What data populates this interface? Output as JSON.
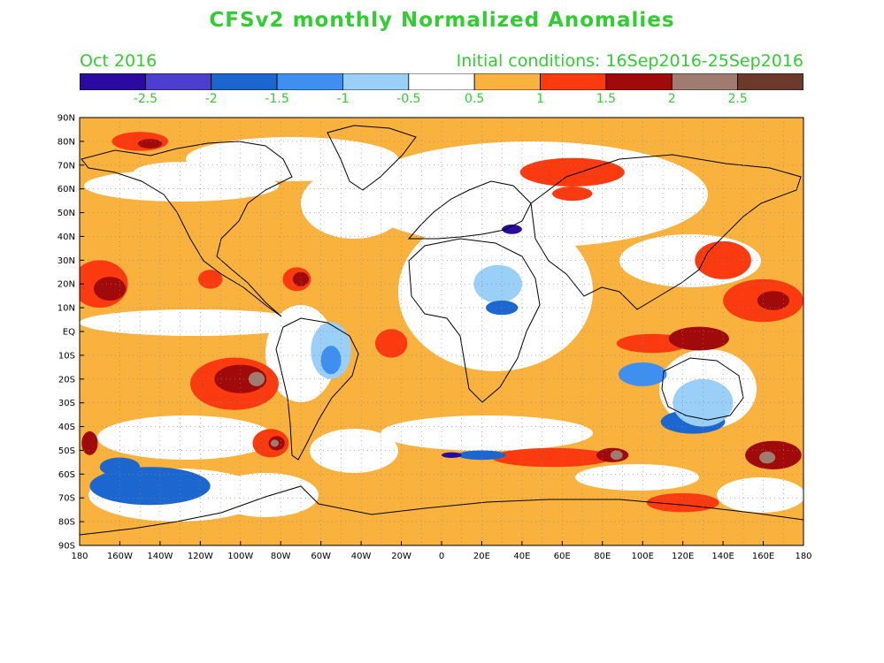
{
  "header": {
    "title": "CFSv2 monthly Normalized Anomalies",
    "valid_month": "Oct 2016",
    "initial_conditions": "Initial conditions: 16Sep2016-25Sep2016"
  },
  "colorbar": {
    "colors": [
      "#2a0aa0",
      "#4c3fd0",
      "#1c66d0",
      "#3f8ff0",
      "#9acff8",
      "#ffffff",
      "#f9b23e",
      "#fb3a10",
      "#a00a0a",
      "#a07c70",
      "#6b3a2a"
    ],
    "labels": [
      "-2.5",
      "-2",
      "-1.5",
      "-1",
      "-0.5",
      "0.5",
      "1",
      "1.5",
      "2",
      "2.5"
    ]
  },
  "axes": {
    "lat_labels": [
      "90N",
      "80N",
      "70N",
      "60N",
      "50N",
      "40N",
      "30N",
      "20N",
      "10N",
      "EQ",
      "10S",
      "20S",
      "30S",
      "40S",
      "50S",
      "60S",
      "70S",
      "80S",
      "90S"
    ],
    "lon_labels": [
      "180",
      "160W",
      "140W",
      "120W",
      "100W",
      "80W",
      "60W",
      "40W",
      "20W",
      "0",
      "20E",
      "40E",
      "60E",
      "80E",
      "100E",
      "120E",
      "140E",
      "160E",
      "180"
    ],
    "lon_range": [
      -180,
      180
    ],
    "lat_range": [
      -90,
      90
    ],
    "grid": "dotted"
  },
  "colors": {
    "text_green": "#33cc33",
    "base_positive": "#f9b23e",
    "neutral": "#ffffff",
    "coast": "#000000"
  },
  "anomaly_regions": [
    {
      "lon": -150,
      "lat": 80,
      "rx": 14,
      "ry": 4,
      "class": "1.5"
    },
    {
      "lon": -145,
      "lat": 79,
      "rx": 6,
      "ry": 2,
      "class": "2"
    },
    {
      "lon": -170,
      "lat": 20,
      "rx": 14,
      "ry": 10,
      "class": "1.5"
    },
    {
      "lon": -165,
      "lat": 18,
      "rx": 8,
      "ry": 5,
      "class": "2"
    },
    {
      "lon": -115,
      "lat": 22,
      "rx": 6,
      "ry": 4,
      "class": "1.5"
    },
    {
      "lon": -72,
      "lat": 22,
      "rx": 7,
      "ry": 5,
      "class": "1.5"
    },
    {
      "lon": -70,
      "lat": 22,
      "rx": 4,
      "ry": 3,
      "class": "2"
    },
    {
      "lon": -103,
      "lat": -22,
      "rx": 22,
      "ry": 11,
      "class": "1.5"
    },
    {
      "lon": -100,
      "lat": -20,
      "rx": 13,
      "ry": 6,
      "class": "2"
    },
    {
      "lon": -92,
      "lat": -20,
      "rx": 4,
      "ry": 3,
      "class": "2.5"
    },
    {
      "lon": -85,
      "lat": -47,
      "rx": 9,
      "ry": 6,
      "class": "1.5"
    },
    {
      "lon": -82,
      "lat": -47,
      "rx": 4,
      "ry": 3,
      "class": "2"
    },
    {
      "lon": -83,
      "lat": -47,
      "rx": 2,
      "ry": 1.5,
      "class": "2.5"
    },
    {
      "lon": -175,
      "lat": -47,
      "rx": 4,
      "ry": 5,
      "class": "2"
    },
    {
      "lon": -25,
      "lat": -5,
      "rx": 8,
      "ry": 6,
      "class": "1.5"
    },
    {
      "lon": 65,
      "lat": 67,
      "rx": 26,
      "ry": 6,
      "class": "1.5"
    },
    {
      "lon": 65,
      "lat": 58,
      "rx": 10,
      "ry": 3,
      "class": "1.5"
    },
    {
      "lon": 105,
      "lat": -5,
      "rx": 18,
      "ry": 4,
      "class": "1.5"
    },
    {
      "lon": 128,
      "lat": -3,
      "rx": 15,
      "ry": 5,
      "class": "2"
    },
    {
      "lon": 160,
      "lat": 13,
      "rx": 20,
      "ry": 9,
      "class": "1.5"
    },
    {
      "lon": 165,
      "lat": 13,
      "rx": 8,
      "ry": 4,
      "class": "2"
    },
    {
      "lon": 140,
      "lat": 30,
      "rx": 14,
      "ry": 8,
      "class": "1.5"
    },
    {
      "lon": 55,
      "lat": -53,
      "rx": 30,
      "ry": 4,
      "class": "1.5"
    },
    {
      "lon": 85,
      "lat": -52,
      "rx": 8,
      "ry": 3,
      "class": "2"
    },
    {
      "lon": 87,
      "lat": -52,
      "rx": 3,
      "ry": 2,
      "class": "2.5"
    },
    {
      "lon": 165,
      "lat": -52,
      "rx": 14,
      "ry": 6,
      "class": "2"
    },
    {
      "lon": 162,
      "lat": -53,
      "rx": 4,
      "ry": 2.5,
      "class": "2.5"
    },
    {
      "lon": 120,
      "lat": -72,
      "rx": 18,
      "ry": 4,
      "class": "1.5"
    },
    {
      "lon": 35,
      "lat": 43,
      "rx": 5,
      "ry": 2,
      "class": "-2.5"
    },
    {
      "lon": 20,
      "lat": -52,
      "rx": 12,
      "ry": 2,
      "class": "-1.5"
    },
    {
      "lon": 5,
      "lat": -52,
      "rx": 5,
      "ry": 1.2,
      "class": "-2.5"
    },
    {
      "lon": -145,
      "lat": -65,
      "rx": 30,
      "ry": 8,
      "class": "-1.5"
    },
    {
      "lon": -160,
      "lat": -57,
      "rx": 10,
      "ry": 4,
      "class": "-1.5"
    },
    {
      "lon": 125,
      "lat": -38,
      "rx": 16,
      "ry": 5,
      "class": "-1.5"
    },
    {
      "lon": 100,
      "lat": -18,
      "rx": 12,
      "ry": 5,
      "class": "-1"
    },
    {
      "lon": -55,
      "lat": -8,
      "rx": 10,
      "ry": 12,
      "class": "-0.5"
    },
    {
      "lon": -55,
      "lat": -12,
      "rx": 5,
      "ry": 6,
      "class": "-1"
    },
    {
      "lon": 28,
      "lat": 20,
      "rx": 12,
      "ry": 8,
      "class": "-0.5"
    },
    {
      "lon": 30,
      "lat": 10,
      "rx": 8,
      "ry": 3,
      "class": "-1.5"
    },
    {
      "lon": 130,
      "lat": -30,
      "rx": 15,
      "ry": 10,
      "class": "-0.5"
    }
  ]
}
